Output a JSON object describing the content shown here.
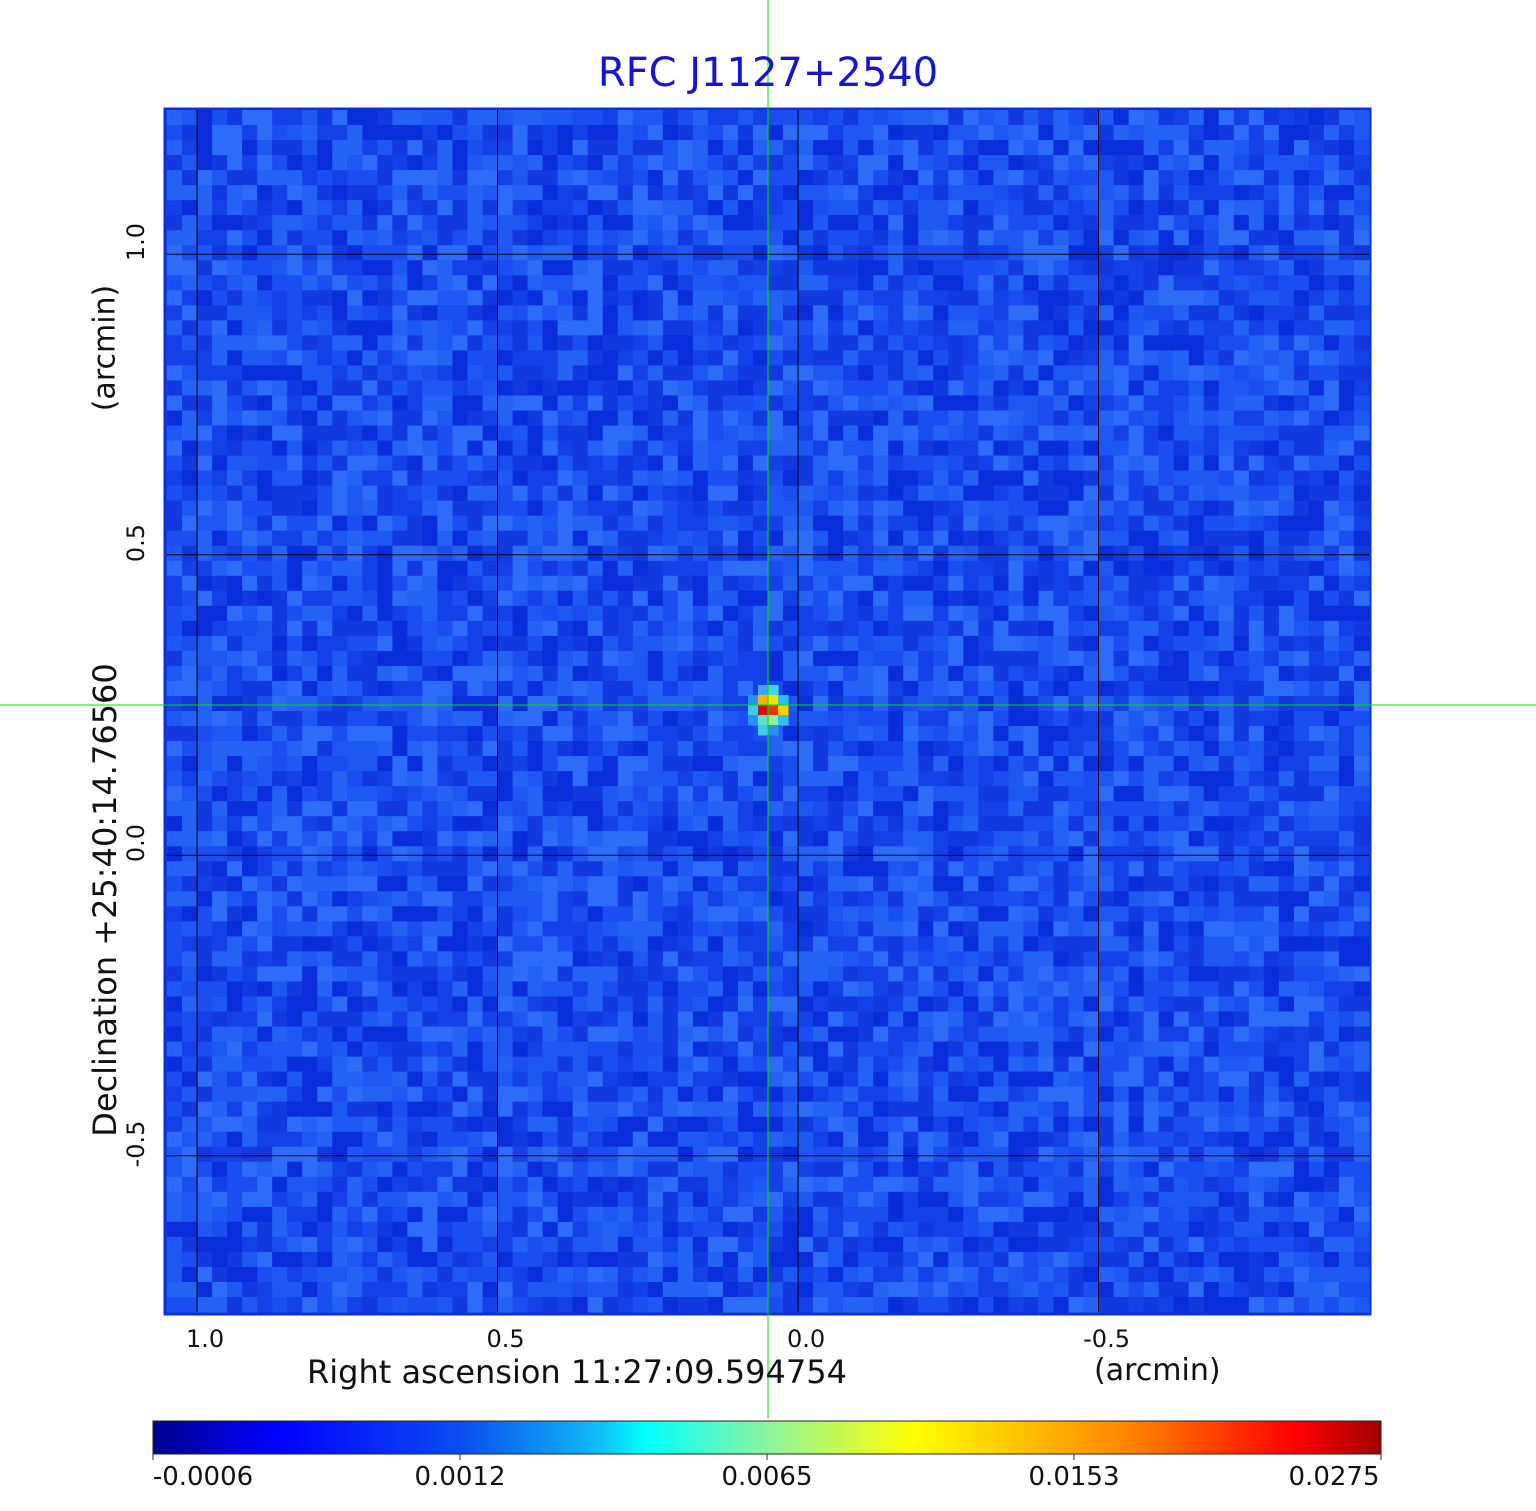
{
  "chart_data": {
    "type": "heatmap",
    "title": "RFC J1127+2540",
    "xlabel": "Right ascension  11:27:09.594754",
    "xunit": "(arcmin)",
    "ylabel": "Declination  +25:40:14.76560",
    "yunit": "(arcmin)",
    "x_ticks": [
      "1.0",
      "0.5",
      "0.0",
      "-0.5"
    ],
    "y_ticks": [
      "1.0",
      "0.5",
      "0.0",
      "-0.5"
    ],
    "xlim": [
      1.05,
      -0.95
    ],
    "ylim": [
      -0.76,
      1.24
    ],
    "x_tick_values": [
      1.0,
      0.5,
      0.0,
      -0.5
    ],
    "y_tick_values": [
      1.0,
      0.5,
      0.0,
      -0.5
    ],
    "grid": true,
    "crosshair": {
      "x": 0.05,
      "y": 0.25,
      "color": "#00e000"
    },
    "source_peak": {
      "x": 0.05,
      "y": 0.25,
      "value": 0.0275
    },
    "colorbar": {
      "colormap": "jet",
      "labels": [
        "-0.0006",
        "0.0012",
        "0.0065",
        "0.0153",
        "0.0275"
      ],
      "values": [
        -0.0006,
        0.0012,
        0.0065,
        0.0153,
        0.0275
      ],
      "colors": [
        "#00008b",
        "#0000ff",
        "#00ffff",
        "#ffff00",
        "#ff0000",
        "#8b0000"
      ]
    }
  }
}
